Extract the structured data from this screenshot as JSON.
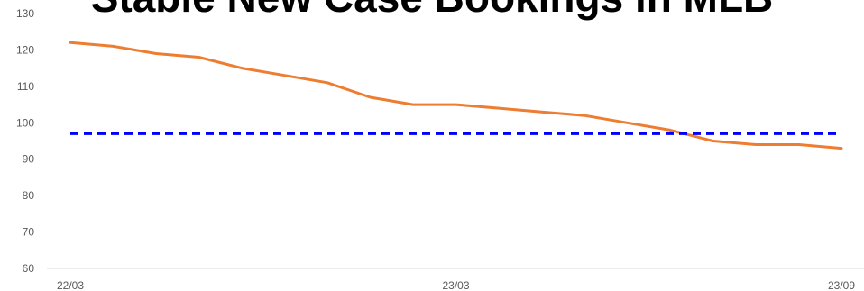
{
  "chart_data": {
    "type": "line",
    "title": "Stable New Case Bookings in MLB",
    "xlabel": "",
    "ylabel": "",
    "ylim": [
      60,
      130
    ],
    "y_ticks": [
      60,
      70,
      80,
      90,
      100,
      110,
      120,
      130
    ],
    "x_tick_labels": [
      "22/03",
      "23/03",
      "23/09"
    ],
    "grid": false,
    "legend": "none",
    "series": [
      {
        "values": [
          122,
          121,
          119,
          118,
          115,
          113,
          111,
          107,
          105,
          105,
          104,
          103,
          102,
          100,
          98,
          95,
          94,
          94,
          93
        ],
        "color": "#ED7D31",
        "style": "solid"
      },
      {
        "values": [
          97,
          97
        ],
        "color": "#0000FF",
        "style": "dashed"
      }
    ]
  }
}
